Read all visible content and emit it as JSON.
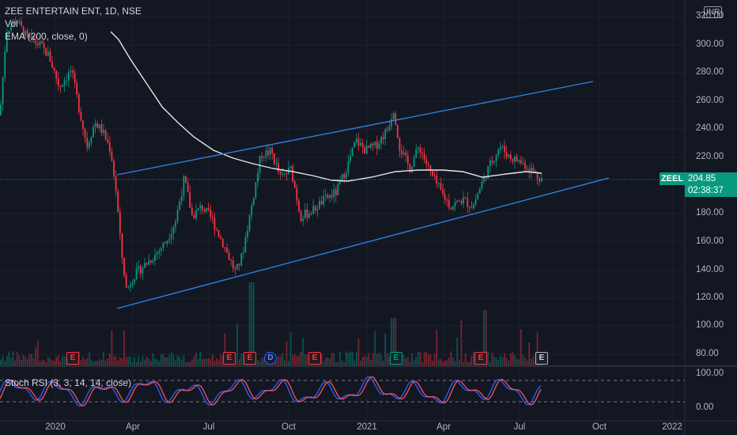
{
  "legend": {
    "symbol_line": "ZEE ENTERTAIN ENT, 1D, NSE",
    "volume_label": "Vol",
    "ema_label": "EMA (200, close, 0)"
  },
  "price_axis": {
    "currency": "INR",
    "ticks": [
      "320.00",
      "300.00",
      "280.00",
      "260.00",
      "240.00",
      "220.00",
      "200.00",
      "180.00",
      "160.00",
      "140.00",
      "120.00",
      "100.00",
      "80.00"
    ],
    "current_price": "204.85",
    "countdown": "02:38:37",
    "ticker": "ZEEL"
  },
  "stoch": {
    "label": "Stoch RSI (3, 3, 14, 14, close)",
    "ticks": [
      "100.00",
      "0.00"
    ]
  },
  "time_axis": {
    "ticks": [
      "2020",
      "Apr",
      "Jul",
      "Oct",
      "2021",
      "Apr",
      "Jul",
      "Oct",
      "2022"
    ]
  },
  "events": {
    "e1": "E",
    "e2": "E",
    "e3": "E",
    "d1": "D",
    "e4": "E",
    "e5": "E",
    "e6": "E",
    "e7": "E"
  },
  "colors": {
    "background": "#131722",
    "up": "#089981",
    "down": "#f23645",
    "trendline": "#2f7fe0",
    "ema": "#e6e6e6",
    "stoch_k": "#2962ff",
    "stoch_d": "#f7525f"
  }
}
